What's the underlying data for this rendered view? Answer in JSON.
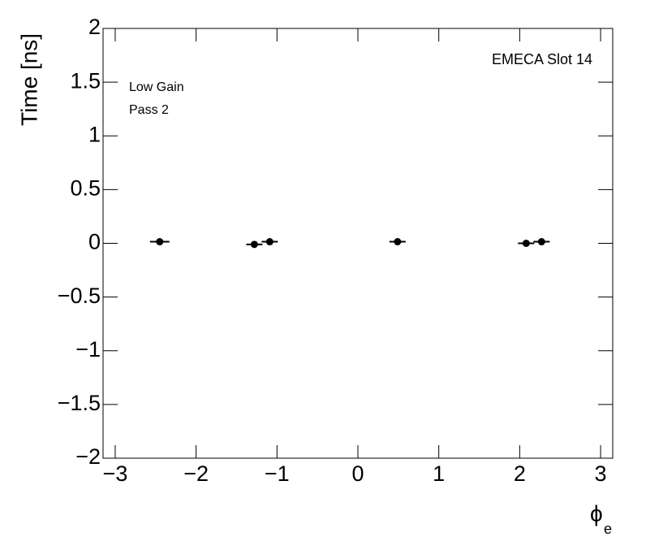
{
  "chart_data": {
    "type": "scatter",
    "annotations": [
      "EMECA Slot 14",
      "Low Gain",
      "Pass 2"
    ],
    "y_label": "Time [ns]",
    "x_label": {
      "symbol": "ϕ",
      "subscript": "e"
    },
    "series": [
      {
        "color": "#000000",
        "x": [
          -2.45,
          -1.28,
          -1.09,
          0.49,
          2.08,
          2.27
        ],
        "xerr": [
          0.12,
          0.1,
          0.1,
          0.1,
          0.1,
          0.1
        ],
        "values": [
          0.015,
          -0.01,
          0.015,
          0.015,
          0.0,
          0.015
        ]
      }
    ],
    "xlim": [
      -3.15,
      3.15
    ],
    "xticks": [
      {
        "value": -3,
        "label": "−3"
      },
      {
        "value": -2,
        "label": "−2"
      },
      {
        "value": -1,
        "label": "−1"
      },
      0,
      1,
      2,
      3
    ],
    "ylim": [
      -2,
      2
    ],
    "yticks": [
      {
        "value": -2,
        "label": "−2"
      },
      {
        "value": -1.5,
        "label": "−1.5"
      },
      {
        "value": -1,
        "label": "−1"
      },
      {
        "value": -0.5,
        "label": "−0.5"
      },
      0,
      0.5,
      1,
      1.5,
      2
    ]
  }
}
